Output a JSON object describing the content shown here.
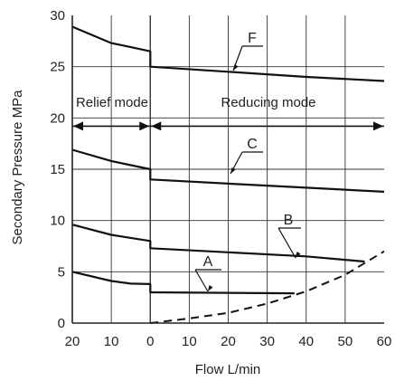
{
  "chart_data": {
    "type": "line",
    "xlabel": "Flow  L/min",
    "ylabel": "Secondary Pressure  MPa",
    "x_tick_labels": [
      "20",
      "10",
      "0",
      "10",
      "20",
      "30",
      "40",
      "50",
      "60"
    ],
    "y_tick_labels": [
      "0",
      "5",
      "10",
      "15",
      "20",
      "25",
      "30"
    ],
    "xlim": [
      -20,
      60
    ],
    "ylim": [
      0,
      30
    ],
    "grid": true,
    "mode_labels": {
      "relief": "Relief mode",
      "reducing": "Reducing mode"
    },
    "mode_boundary_y": 19.2,
    "series": [
      {
        "name": "F",
        "x": [
          -20,
          -10,
          -5,
          0,
          0,
          20,
          40,
          60
        ],
        "y": [
          28.9,
          27.3,
          26.9,
          26.5,
          25.0,
          24.5,
          24.0,
          23.6
        ]
      },
      {
        "name": "C",
        "x": [
          -20,
          -10,
          -5,
          0,
          0,
          20,
          40,
          60
        ],
        "y": [
          16.9,
          15.8,
          15.4,
          15.0,
          14.0,
          13.6,
          13.2,
          12.8
        ]
      },
      {
        "name": "B",
        "x": [
          -20,
          -10,
          -5,
          0,
          0,
          20,
          40,
          55
        ],
        "y": [
          9.6,
          8.6,
          8.3,
          8.0,
          7.3,
          6.9,
          6.5,
          6.0
        ]
      },
      {
        "name": "A",
        "x": [
          -20,
          -10,
          -5,
          0,
          0,
          20,
          37
        ],
        "y": [
          5.0,
          4.1,
          3.85,
          3.8,
          3.0,
          2.95,
          2.9
        ]
      }
    ],
    "limit_curve": {
      "x": [
        0,
        10,
        20,
        30,
        40,
        50,
        60
      ],
      "y": [
        0,
        0.45,
        1.0,
        1.9,
        3.1,
        4.7,
        7.0
      ]
    }
  }
}
